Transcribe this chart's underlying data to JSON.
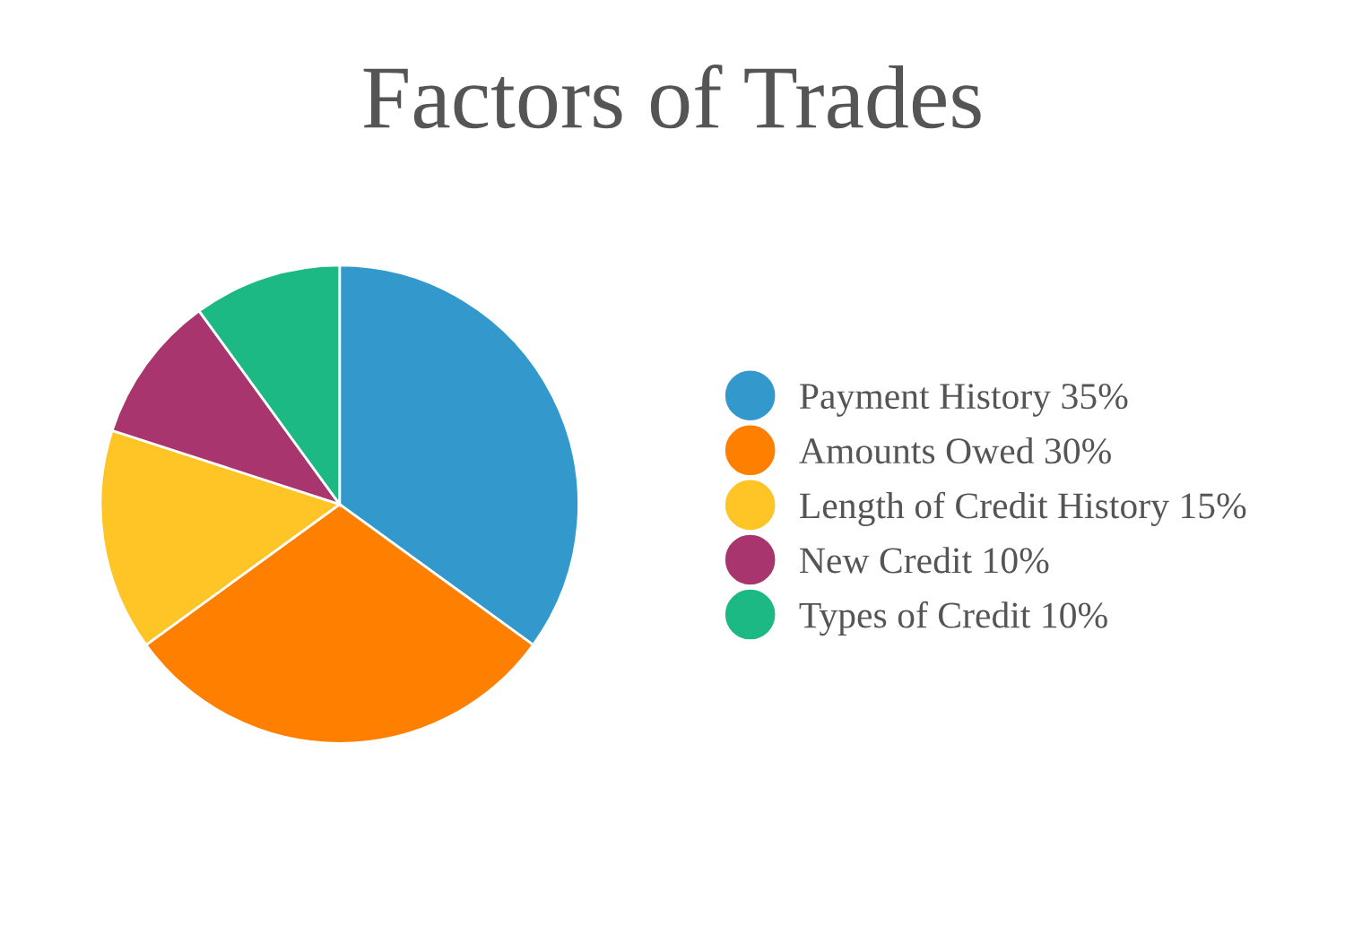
{
  "chart_data": {
    "type": "pie",
    "title": "Factors of Trades",
    "categories": [
      "Payment History",
      "Amounts Owed",
      "Length of Credit History",
      "New Credit",
      "Types of Credit"
    ],
    "values": [
      35,
      30,
      15,
      10,
      10
    ],
    "value_labels": [
      "35%",
      "30%",
      "15%",
      "10%",
      "10%"
    ],
    "colors": [
      "#3399cc",
      "#ff8000",
      "#ffc425",
      "#a8356e",
      "#1cb985"
    ],
    "legend": "right"
  }
}
